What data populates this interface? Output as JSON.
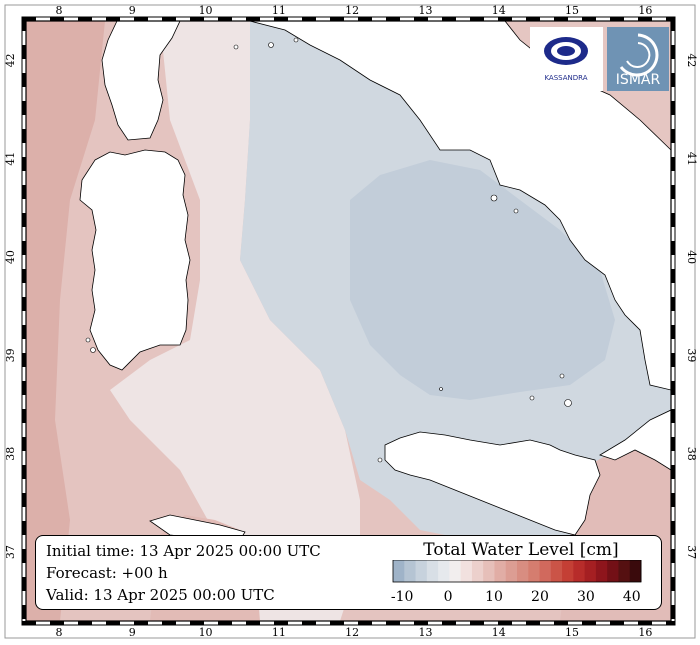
{
  "map": {
    "longitude_ticks": [
      "8",
      "9",
      "10",
      "11",
      "12",
      "13",
      "14",
      "15",
      "16"
    ],
    "latitude_ticks": [
      "42",
      "41",
      "40",
      "39",
      "38",
      "37"
    ],
    "lon_range": [
      7.55,
      16.35
    ],
    "lat_range": [
      36.3,
      42.4
    ]
  },
  "info": {
    "initial_time": "Initial time: 13 Apr 2025 00:00 UTC",
    "forecast": "Forecast: +00 h",
    "valid": "Valid: 13 Apr 2025 00:00 UTC"
  },
  "legend": {
    "title": "Total Water Level [cm]",
    "tick_labels": [
      "-10",
      "0",
      "10",
      "20",
      "30",
      "40"
    ],
    "range": [
      -12,
      42
    ],
    "colors": [
      "#9fb3c8",
      "#b5c4d3",
      "#c7d2dd",
      "#d8dfe6",
      "#e6e9ed",
      "#f2eeee",
      "#f2e1df",
      "#ecd0cc",
      "#e6bfb9",
      "#e1ada5",
      "#dc9d93",
      "#d88d81",
      "#d57d6f",
      "#d1695d",
      "#cb5447",
      "#c43f35",
      "#b72c2a",
      "#a51f22",
      "#8e151c",
      "#731016",
      "#551011",
      "#3a0a0c"
    ]
  },
  "logos": {
    "left_name": "MARINE LOGO",
    "left_text": "KASSANDRA",
    "right_text": "ISMAR"
  },
  "colors": {
    "negative": "#c9d3dd",
    "zero": "#ede9ea",
    "positive": "#e2c2bf",
    "coastline": "#000000"
  }
}
